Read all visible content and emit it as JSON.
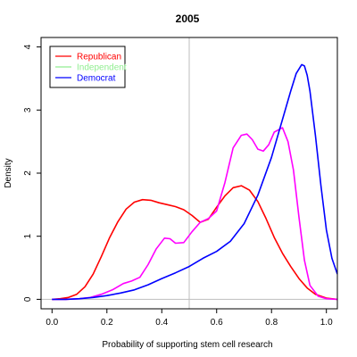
{
  "chart_data": {
    "type": "line",
    "title": "2005",
    "xlabel": "Probability of supporting stem cell research",
    "ylabel": "Density",
    "xlim": [
      -0.04,
      1.04
    ],
    "ylim": [
      -0.15,
      4.15
    ],
    "xticks": [
      "0.0",
      "0.2",
      "0.4",
      "0.6",
      "0.8",
      "1.0"
    ],
    "yticks": [
      "0",
      "1",
      "2",
      "3",
      "4"
    ],
    "reference_line_x": 0.5,
    "reference_line_color": "#bebebe",
    "legend_position": "top-left",
    "series": [
      {
        "name": "Republican",
        "color": "#ff0000",
        "x": [
          0.0,
          0.03,
          0.06,
          0.09,
          0.12,
          0.15,
          0.18,
          0.21,
          0.24,
          0.27,
          0.3,
          0.33,
          0.36,
          0.39,
          0.42,
          0.45,
          0.48,
          0.51,
          0.54,
          0.57,
          0.6,
          0.63,
          0.66,
          0.69,
          0.72,
          0.75,
          0.78,
          0.81,
          0.84,
          0.87,
          0.9,
          0.93,
          0.96,
          1.0,
          1.04
        ],
        "y": [
          0.0,
          0.01,
          0.03,
          0.08,
          0.2,
          0.4,
          0.68,
          0.98,
          1.23,
          1.43,
          1.54,
          1.58,
          1.57,
          1.53,
          1.5,
          1.47,
          1.42,
          1.33,
          1.22,
          1.27,
          1.46,
          1.64,
          1.77,
          1.8,
          1.73,
          1.55,
          1.28,
          0.98,
          0.73,
          0.52,
          0.33,
          0.18,
          0.08,
          0.02,
          0.0
        ]
      },
      {
        "name": "Independent",
        "color": "#ff00ff",
        "legend_color": "#90ee90",
        "x": [
          0.0,
          0.05,
          0.1,
          0.14,
          0.18,
          0.22,
          0.26,
          0.29,
          0.32,
          0.35,
          0.38,
          0.41,
          0.43,
          0.45,
          0.48,
          0.51,
          0.54,
          0.57,
          0.6,
          0.63,
          0.66,
          0.69,
          0.71,
          0.73,
          0.75,
          0.77,
          0.79,
          0.81,
          0.84,
          0.86,
          0.88,
          0.9,
          0.92,
          0.94,
          0.97,
          1.0,
          1.04
        ],
        "y": [
          0.0,
          0.0,
          0.01,
          0.03,
          0.08,
          0.15,
          0.25,
          0.29,
          0.35,
          0.55,
          0.8,
          0.97,
          0.96,
          0.89,
          0.9,
          1.07,
          1.22,
          1.28,
          1.4,
          1.85,
          2.4,
          2.6,
          2.62,
          2.53,
          2.38,
          2.35,
          2.45,
          2.65,
          2.72,
          2.5,
          2.05,
          1.3,
          0.62,
          0.22,
          0.05,
          0.01,
          0.0
        ]
      },
      {
        "name": "Democrat",
        "color": "#0000ff",
        "x": [
          0.0,
          0.05,
          0.1,
          0.15,
          0.2,
          0.25,
          0.3,
          0.35,
          0.4,
          0.45,
          0.5,
          0.55,
          0.6,
          0.65,
          0.7,
          0.75,
          0.8,
          0.84,
          0.87,
          0.89,
          0.91,
          0.92,
          0.93,
          0.94,
          0.96,
          0.98,
          1.0,
          1.02,
          1.04
        ],
        "y": [
          0.0,
          0.0,
          0.01,
          0.03,
          0.06,
          0.1,
          0.15,
          0.23,
          0.33,
          0.42,
          0.52,
          0.65,
          0.76,
          0.92,
          1.2,
          1.65,
          2.25,
          2.85,
          3.3,
          3.58,
          3.72,
          3.7,
          3.55,
          3.3,
          2.6,
          1.8,
          1.1,
          0.65,
          0.4
        ]
      }
    ]
  }
}
